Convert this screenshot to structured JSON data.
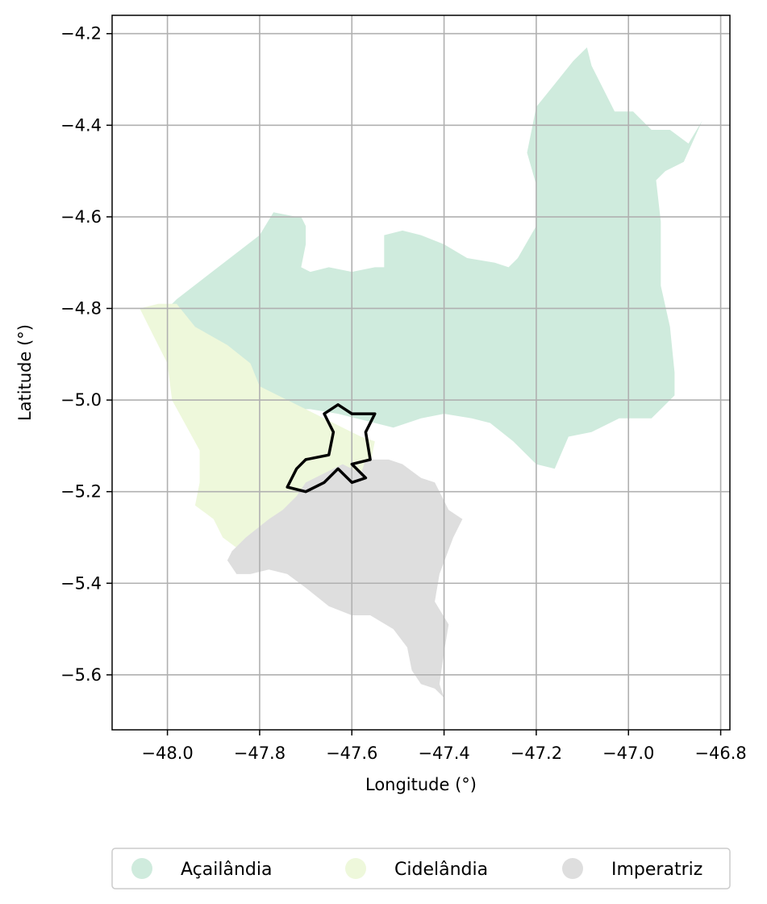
{
  "chart_data": {
    "type": "map",
    "xlabel": "Longitude (°)",
    "ylabel": "Latitude (°)",
    "xlim": [
      -48.12,
      -46.78
    ],
    "ylim": [
      -5.72,
      -4.16
    ],
    "grid": true,
    "x_ticks": [
      {
        "value": -48.0,
        "label": "−48.0"
      },
      {
        "value": -47.8,
        "label": "−47.8"
      },
      {
        "value": -47.6,
        "label": "−47.6"
      },
      {
        "value": -47.4,
        "label": "−47.4"
      },
      {
        "value": -47.2,
        "label": "−47.2"
      },
      {
        "value": -47.0,
        "label": "−47.0"
      },
      {
        "value": -46.8,
        "label": "−46.8"
      }
    ],
    "y_ticks": [
      {
        "value": -4.2,
        "label": "−4.2"
      },
      {
        "value": -4.4,
        "label": "−4.4"
      },
      {
        "value": -4.6,
        "label": "−4.6"
      },
      {
        "value": -4.8,
        "label": "−4.8"
      },
      {
        "value": -5.0,
        "label": "−5.0"
      },
      {
        "value": -5.2,
        "label": "−5.2"
      },
      {
        "value": -5.4,
        "label": "−5.4"
      },
      {
        "value": -5.6,
        "label": "−5.6"
      }
    ],
    "legend_position": "bottom-center",
    "regions": [
      {
        "name": "Açailândia",
        "color": "#cfebdd",
        "coords": [
          [
            -47.98,
            -4.78
          ],
          [
            -47.8,
            -4.64
          ],
          [
            -47.77,
            -4.59
          ],
          [
            -47.72,
            -4.6
          ],
          [
            -47.71,
            -4.6
          ],
          [
            -47.7,
            -4.62
          ],
          [
            -47.7,
            -4.66
          ],
          [
            -47.71,
            -4.71
          ],
          [
            -47.69,
            -4.72
          ],
          [
            -47.65,
            -4.71
          ],
          [
            -47.6,
            -4.72
          ],
          [
            -47.55,
            -4.71
          ],
          [
            -47.53,
            -4.71
          ],
          [
            -47.53,
            -4.64
          ],
          [
            -47.49,
            -4.63
          ],
          [
            -47.45,
            -4.64
          ],
          [
            -47.4,
            -4.66
          ],
          [
            -47.35,
            -4.69
          ],
          [
            -47.29,
            -4.7
          ],
          [
            -47.26,
            -4.71
          ],
          [
            -47.24,
            -4.69
          ],
          [
            -47.2,
            -4.62
          ],
          [
            -47.2,
            -4.53
          ],
          [
            -47.22,
            -4.46
          ],
          [
            -47.2,
            -4.36
          ],
          [
            -47.16,
            -4.31
          ],
          [
            -47.12,
            -4.26
          ],
          [
            -47.09,
            -4.23
          ],
          [
            -47.08,
            -4.27
          ],
          [
            -47.05,
            -4.33
          ],
          [
            -47.03,
            -4.37
          ],
          [
            -46.99,
            -4.37
          ],
          [
            -46.95,
            -4.41
          ],
          [
            -46.91,
            -4.41
          ],
          [
            -46.87,
            -4.44
          ],
          [
            -46.84,
            -4.39
          ],
          [
            -46.88,
            -4.48
          ],
          [
            -46.92,
            -4.5
          ],
          [
            -46.94,
            -4.52
          ],
          [
            -46.93,
            -4.61
          ],
          [
            -46.93,
            -4.75
          ],
          [
            -46.91,
            -4.84
          ],
          [
            -46.9,
            -4.94
          ],
          [
            -46.9,
            -4.99
          ],
          [
            -46.95,
            -5.04
          ],
          [
            -47.02,
            -5.04
          ],
          [
            -47.08,
            -5.07
          ],
          [
            -47.13,
            -5.08
          ],
          [
            -47.16,
            -5.15
          ],
          [
            -47.2,
            -5.14
          ],
          [
            -47.25,
            -5.09
          ],
          [
            -47.3,
            -5.05
          ],
          [
            -47.34,
            -5.04
          ],
          [
            -47.4,
            -5.03
          ],
          [
            -47.45,
            -5.04
          ],
          [
            -47.51,
            -5.06
          ],
          [
            -47.55,
            -5.05
          ],
          [
            -47.63,
            -5.03
          ],
          [
            -47.69,
            -5.02
          ],
          [
            -47.77,
            -5.02
          ],
          [
            -47.8,
            -5.01
          ],
          [
            -47.83,
            -4.99
          ],
          [
            -47.86,
            -4.9
          ],
          [
            -47.93,
            -4.85
          ],
          [
            -48.0,
            -4.8
          ]
        ]
      },
      {
        "name": "Cidelândia",
        "color": "#eef8db",
        "coords": [
          [
            -48.06,
            -4.8
          ],
          [
            -48.02,
            -4.79
          ],
          [
            -47.98,
            -4.79
          ],
          [
            -47.94,
            -4.84
          ],
          [
            -47.87,
            -4.88
          ],
          [
            -47.82,
            -4.92
          ],
          [
            -47.8,
            -4.97
          ],
          [
            -47.72,
            -5.01
          ],
          [
            -47.62,
            -5.06
          ],
          [
            -47.58,
            -5.08
          ],
          [
            -47.55,
            -5.09
          ],
          [
            -47.56,
            -5.14
          ],
          [
            -47.6,
            -5.17
          ],
          [
            -47.66,
            -5.17
          ],
          [
            -47.7,
            -5.21
          ],
          [
            -47.72,
            -5.24
          ],
          [
            -47.78,
            -5.27
          ],
          [
            -47.84,
            -5.33
          ],
          [
            -47.88,
            -5.3
          ],
          [
            -47.9,
            -5.26
          ],
          [
            -47.94,
            -5.23
          ],
          [
            -47.93,
            -5.18
          ],
          [
            -47.93,
            -5.11
          ],
          [
            -47.99,
            -5.0
          ],
          [
            -48.0,
            -4.92
          ],
          [
            -48.03,
            -4.86
          ]
        ]
      },
      {
        "name": "Imperatriz",
        "color": "#dedede",
        "coords": [
          [
            -47.57,
            -5.13
          ],
          [
            -47.58,
            -5.16
          ],
          [
            -47.62,
            -5.14
          ],
          [
            -47.66,
            -5.16
          ],
          [
            -47.7,
            -5.18
          ],
          [
            -47.72,
            -5.21
          ],
          [
            -47.75,
            -5.24
          ],
          [
            -47.78,
            -5.26
          ],
          [
            -47.83,
            -5.3
          ],
          [
            -47.86,
            -5.33
          ],
          [
            -47.87,
            -5.35
          ],
          [
            -47.85,
            -5.38
          ],
          [
            -47.82,
            -5.38
          ],
          [
            -47.78,
            -5.37
          ],
          [
            -47.74,
            -5.38
          ],
          [
            -47.7,
            -5.41
          ],
          [
            -47.65,
            -5.45
          ],
          [
            -47.6,
            -5.47
          ],
          [
            -47.56,
            -5.47
          ],
          [
            -47.51,
            -5.5
          ],
          [
            -47.48,
            -5.54
          ],
          [
            -47.47,
            -5.59
          ],
          [
            -47.45,
            -5.62
          ],
          [
            -47.42,
            -5.63
          ],
          [
            -47.4,
            -5.65
          ],
          [
            -47.41,
            -5.62
          ],
          [
            -47.4,
            -5.55
          ],
          [
            -47.39,
            -5.49
          ],
          [
            -47.42,
            -5.44
          ],
          [
            -47.41,
            -5.38
          ],
          [
            -47.38,
            -5.3
          ],
          [
            -47.36,
            -5.26
          ],
          [
            -47.39,
            -5.24
          ],
          [
            -47.42,
            -5.18
          ],
          [
            -47.45,
            -5.17
          ],
          [
            -47.49,
            -5.14
          ],
          [
            -47.52,
            -5.13
          ]
        ]
      }
    ],
    "outline": {
      "color": "#000000",
      "coords": [
        [
          -47.63,
          -5.01
        ],
        [
          -47.6,
          -5.03
        ],
        [
          -47.55,
          -5.03
        ],
        [
          -47.57,
          -5.07
        ],
        [
          -47.56,
          -5.13
        ],
        [
          -47.6,
          -5.14
        ],
        [
          -47.57,
          -5.17
        ],
        [
          -47.6,
          -5.18
        ],
        [
          -47.63,
          -5.15
        ],
        [
          -47.66,
          -5.18
        ],
        [
          -47.7,
          -5.2
        ],
        [
          -47.74,
          -5.19
        ],
        [
          -47.72,
          -5.15
        ],
        [
          -47.7,
          -5.13
        ],
        [
          -47.65,
          -5.12
        ],
        [
          -47.64,
          -5.07
        ],
        [
          -47.66,
          -5.03
        ]
      ]
    }
  },
  "legend": {
    "items": [
      {
        "label": "Açailândia",
        "color": "#cfebdd"
      },
      {
        "label": "Cidelândia",
        "color": "#eef8db"
      },
      {
        "label": "Imperatriz",
        "color": "#dedede"
      }
    ]
  }
}
